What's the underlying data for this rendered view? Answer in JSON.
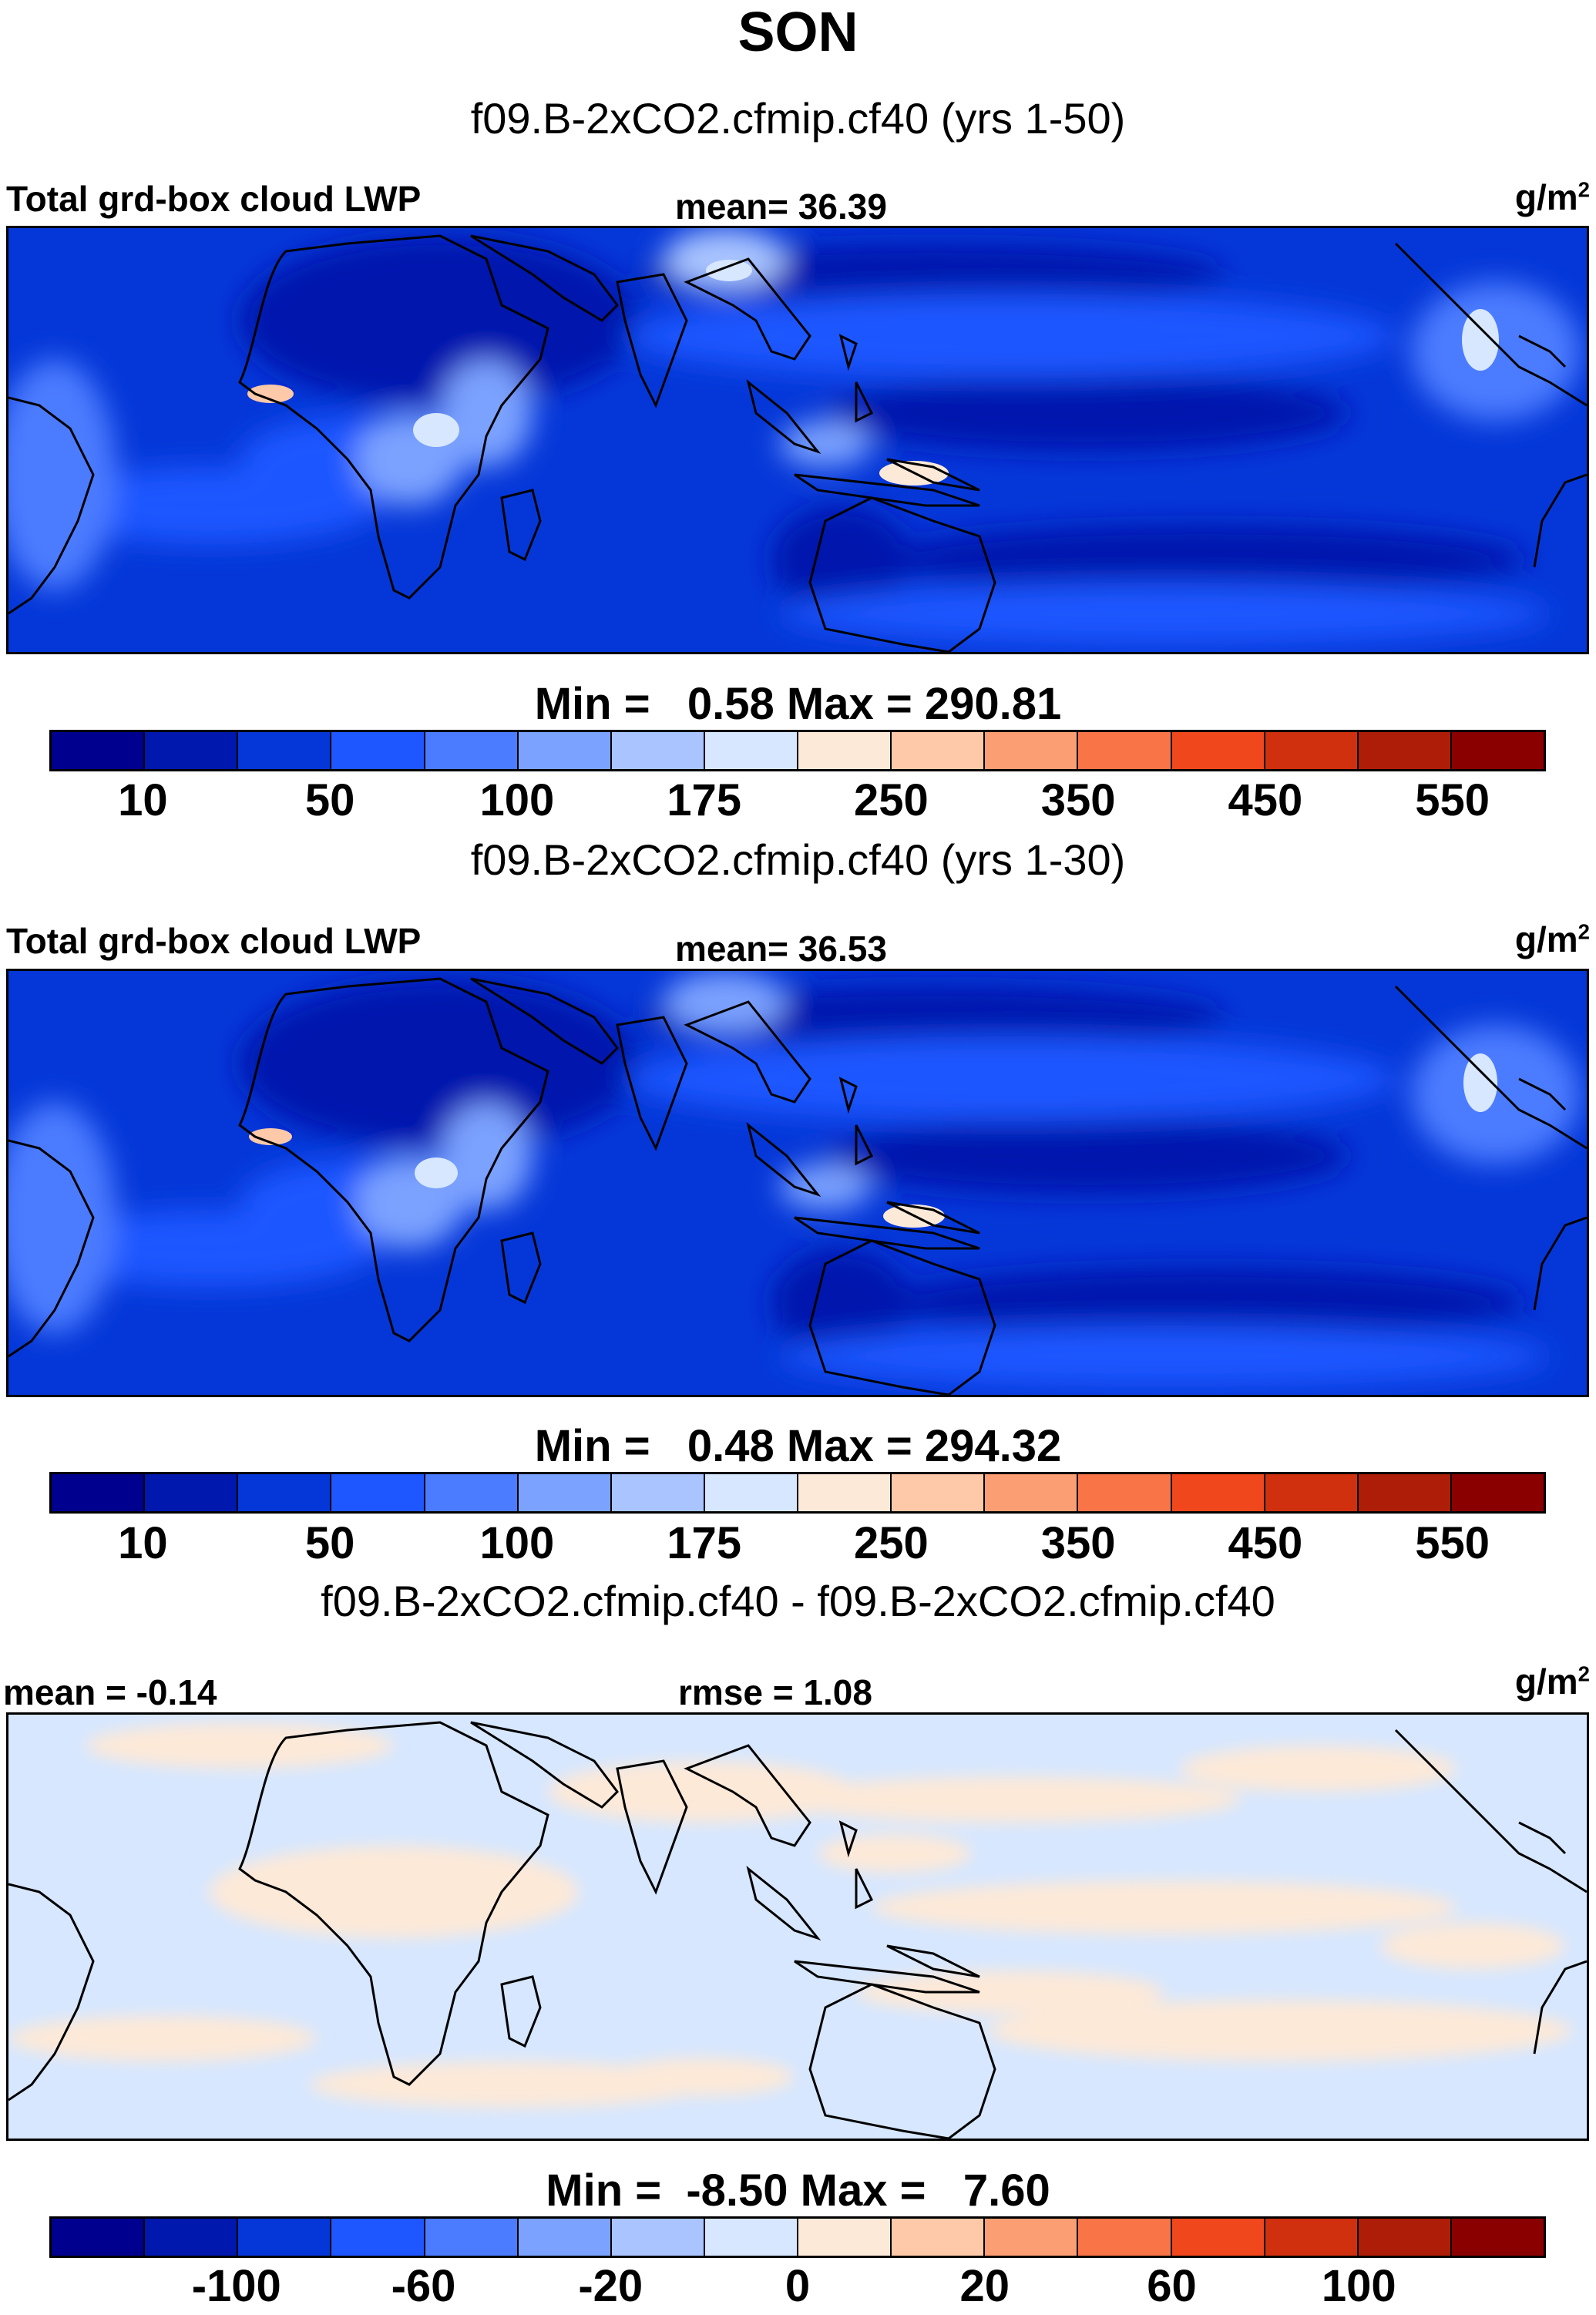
{
  "title": "SON",
  "colors": [
    "#00008f",
    "#0018ad",
    "#0537d8",
    "#1e56ff",
    "#4b7cff",
    "#7ba2ff",
    "#a9c4ff",
    "#d6e7ff",
    "#fde9d8",
    "#fdc9a9",
    "#fc9e74",
    "#f97548",
    "#f0481c",
    "#d0300d",
    "#ae1d07",
    "#8a0000"
  ],
  "panels": [
    {
      "case": "f09.B-2xCO2.cfmip.cf40 (yrs 1-50)",
      "left_label": "Total grd-box cloud LWP",
      "center_label": "mean=  36.39",
      "units": "g/m",
      "units_sup": "2",
      "minmax": "Min =   0.58 Max = 290.81",
      "colorbar_ticks": [
        "10",
        "50",
        "100",
        "175",
        "250",
        "350",
        "450",
        "550"
      ],
      "stats": {
        "min": 0.58,
        "max": 290.81,
        "mean": 36.39
      }
    },
    {
      "case": "f09.B-2xCO2.cfmip.cf40 (yrs 1-30)",
      "left_label": "Total grd-box cloud LWP",
      "center_label": "mean=  36.53",
      "units": "g/m",
      "units_sup": "2",
      "minmax": "Min =   0.48 Max = 294.32",
      "colorbar_ticks": [
        "10",
        "50",
        "100",
        "175",
        "250",
        "350",
        "450",
        "550"
      ],
      "stats": {
        "min": 0.48,
        "max": 294.32,
        "mean": 36.53
      }
    },
    {
      "case": "f09.B-2xCO2.cfmip.cf40 - f09.B-2xCO2.cfmip.cf40",
      "left_label": "mean =  -0.14",
      "center_label": "rmse =   1.08",
      "units": "g/m",
      "units_sup": "2",
      "minmax": "Min =  -8.50 Max =   7.60",
      "colorbar_ticks": [
        "-100",
        "-60",
        "-20",
        "0",
        "20",
        "60",
        "100"
      ],
      "stats": {
        "min": -8.5,
        "max": 7.6,
        "mean": -0.14,
        "rmse": 1.08
      }
    }
  ]
}
